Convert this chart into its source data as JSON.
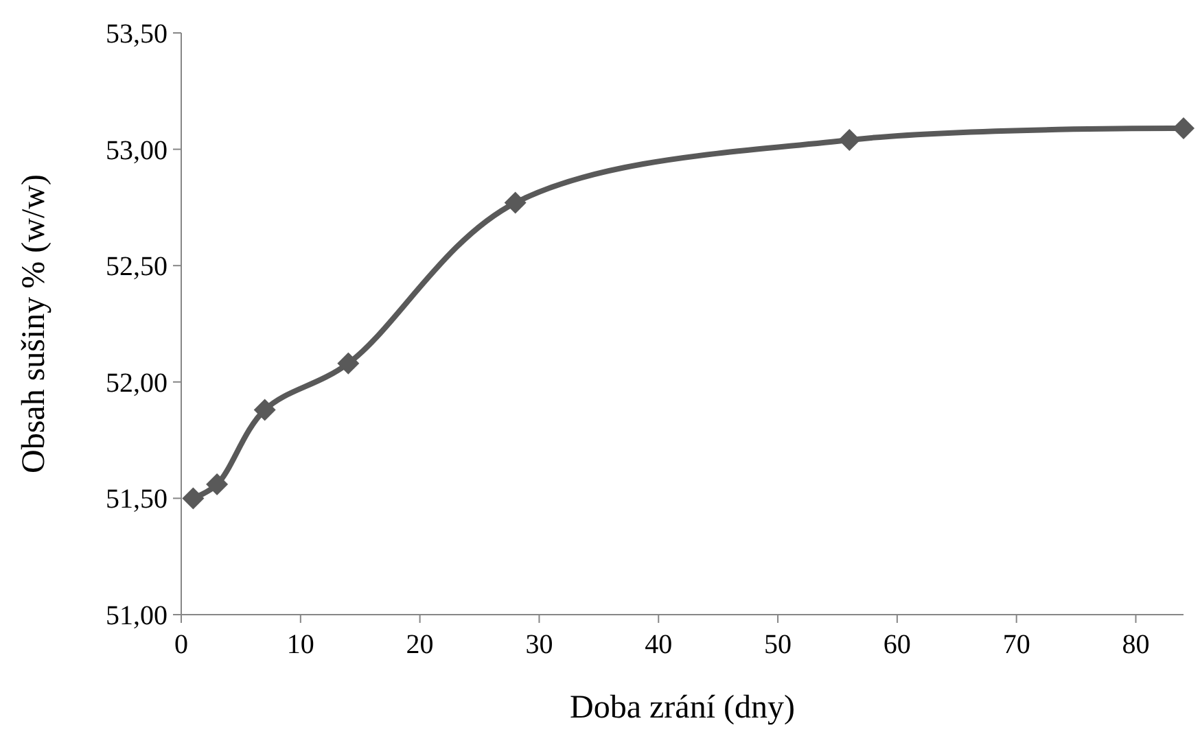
{
  "chart_data": {
    "type": "line",
    "xlabel": "Doba zrání (dny)",
    "ylabel": "Obsah sušiny % (w/w)",
    "x": [
      1,
      3,
      7,
      14,
      28,
      56,
      84
    ],
    "series": [
      {
        "color": "#595959",
        "values": [
          51.5,
          51.56,
          51.88,
          52.08,
          52.77,
          53.04,
          53.09
        ]
      }
    ],
    "xlim": [
      0,
      84
    ],
    "xticks": [
      0,
      10,
      20,
      30,
      40,
      50,
      60,
      70,
      80
    ],
    "ylim": [
      51,
      53.5
    ],
    "yticks": [
      {
        "value": 51,
        "label": "51,00"
      },
      {
        "value": 51.5,
        "label": "51,50"
      },
      {
        "value": 52,
        "label": "52,00"
      },
      {
        "value": 52.5,
        "label": "52,50"
      },
      {
        "value": 53,
        "label": "53,00"
      },
      {
        "value": 53.5,
        "label": "53,50"
      }
    ],
    "marker": "diamond",
    "line_style": "solid",
    "grid": false
  }
}
